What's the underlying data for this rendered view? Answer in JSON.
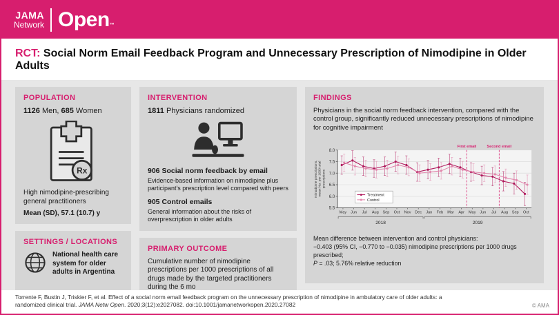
{
  "brand": {
    "jama": "JAMA",
    "network": "Network",
    "open": "Open",
    "tm": "™"
  },
  "title": {
    "tag": "RCT:",
    "text": "Social Norm Email Feedback Program and Unnecessary Prescription of Nimodipine in Older Adults"
  },
  "population": {
    "heading": "POPULATION",
    "men_count": "1126",
    "men_label": "Men,",
    "women_count": "685",
    "women_label": "Women",
    "description": "High nimodipine-prescribing general practitioners",
    "mean": "Mean (SD), 57.1 (10.7) y"
  },
  "settings": {
    "heading": "SETTINGS / LOCATIONS",
    "text": "National health care system for older adults in Argentina"
  },
  "intervention": {
    "heading": "INTERVENTION",
    "randomized_count": "1811",
    "randomized_label": "Physicians randomized",
    "group1_count": "906",
    "group1_label": "Social norm feedback by email",
    "group1_desc": "Evidence-based information on nimodipine plus participant's prescription level compared with peers",
    "group2_count": "905",
    "group2_label": "Control emails",
    "group2_desc": "General information about the risks of overprescription in older adults"
  },
  "primary_outcome": {
    "heading": "PRIMARY OUTCOME",
    "text": "Cumulative number of nimodipine prescriptions per 1000 prescriptions of all drugs made by the targeted practitioners during the 6 mo"
  },
  "findings": {
    "heading": "FINDINGS",
    "summary": "Physicians in the social norm feedback intervention, compared with the control group, significantly reduced unnecessary prescriptions of nimodipine for cognitive impairment",
    "result_line1": "Mean difference between intervention and control physicians:",
    "result_line2": "−0.403 (95% CI, −0.770 to −0.035) nimodipine prescriptions per 1000 drugs prescribed;",
    "result_p": "P",
    "result_line3_rest": " = .03; 5.76% relative reduction"
  },
  "footer": {
    "citation_part1": "Torrente F, Bustin J, Triskier F, et al. Effect of a social norm email feedback program on the unnecessary prescription of nimodipine in ambulatory care of older adults: a randomized clinical trial. ",
    "citation_journal": "JAMA Netw Open",
    "citation_part2": ". 2020;3(12):e2027082. doi:10.1001/jamanetworkopen.2020.27082",
    "copyright": "© AMA"
  },
  "colors": {
    "brand": "#d71e6e",
    "treatment": "#b0195c",
    "control": "#e287ad",
    "panel_gray": "#d5d5d5",
    "background_gray": "#e7e7e7"
  },
  "chart_data": {
    "type": "line",
    "title": "",
    "xlabel": "",
    "ylabel": "Nimodipine prescriptions, mean No. per 1000 total prescriptions",
    "ylim": [
      5.5,
      8.0
    ],
    "yticks": [
      5.5,
      6.0,
      6.5,
      7.0,
      7.5,
      8.0
    ],
    "grid": true,
    "legend_position": "inside-bottom-left",
    "categories": [
      "May",
      "Jun",
      "Jul",
      "Aug",
      "Sep",
      "Oct",
      "Nov",
      "Dec",
      "Jan",
      "Feb",
      "Mar",
      "Apr",
      "May",
      "Jun",
      "Jul",
      "Aug",
      "Sep",
      "Oct"
    ],
    "year_groups": [
      {
        "label": "2018",
        "start": 0,
        "end": 7
      },
      {
        "label": "2019",
        "start": 8,
        "end": 17
      }
    ],
    "annotations": [
      {
        "label": "First email",
        "x_index": 12
      },
      {
        "label": "Second email",
        "x_index": 15
      }
    ],
    "series": [
      {
        "name": "Treatment",
        "color": "#b0195c",
        "values": [
          7.35,
          7.55,
          7.3,
          7.2,
          7.3,
          7.5,
          7.35,
          7.05,
          7.15,
          7.25,
          7.4,
          7.25,
          7.05,
          6.9,
          6.85,
          6.65,
          6.55,
          6.1
        ],
        "error": [
          0.4,
          0.42,
          0.4,
          0.38,
          0.4,
          0.42,
          0.4,
          0.4,
          0.4,
          0.4,
          0.42,
          0.4,
          0.4,
          0.4,
          0.4,
          0.42,
          0.45,
          0.5
        ]
      },
      {
        "name": "Control",
        "color": "#e287ad",
        "values": [
          7.45,
          7.3,
          7.2,
          7.15,
          7.2,
          7.35,
          7.25,
          7.0,
          7.05,
          7.1,
          7.3,
          7.15,
          7.05,
          7.0,
          6.95,
          6.8,
          6.7,
          6.5
        ],
        "error": [
          0.38,
          0.38,
          0.36,
          0.36,
          0.36,
          0.38,
          0.36,
          0.36,
          0.36,
          0.36,
          0.38,
          0.36,
          0.36,
          0.36,
          0.36,
          0.38,
          0.4,
          0.42
        ]
      }
    ]
  }
}
